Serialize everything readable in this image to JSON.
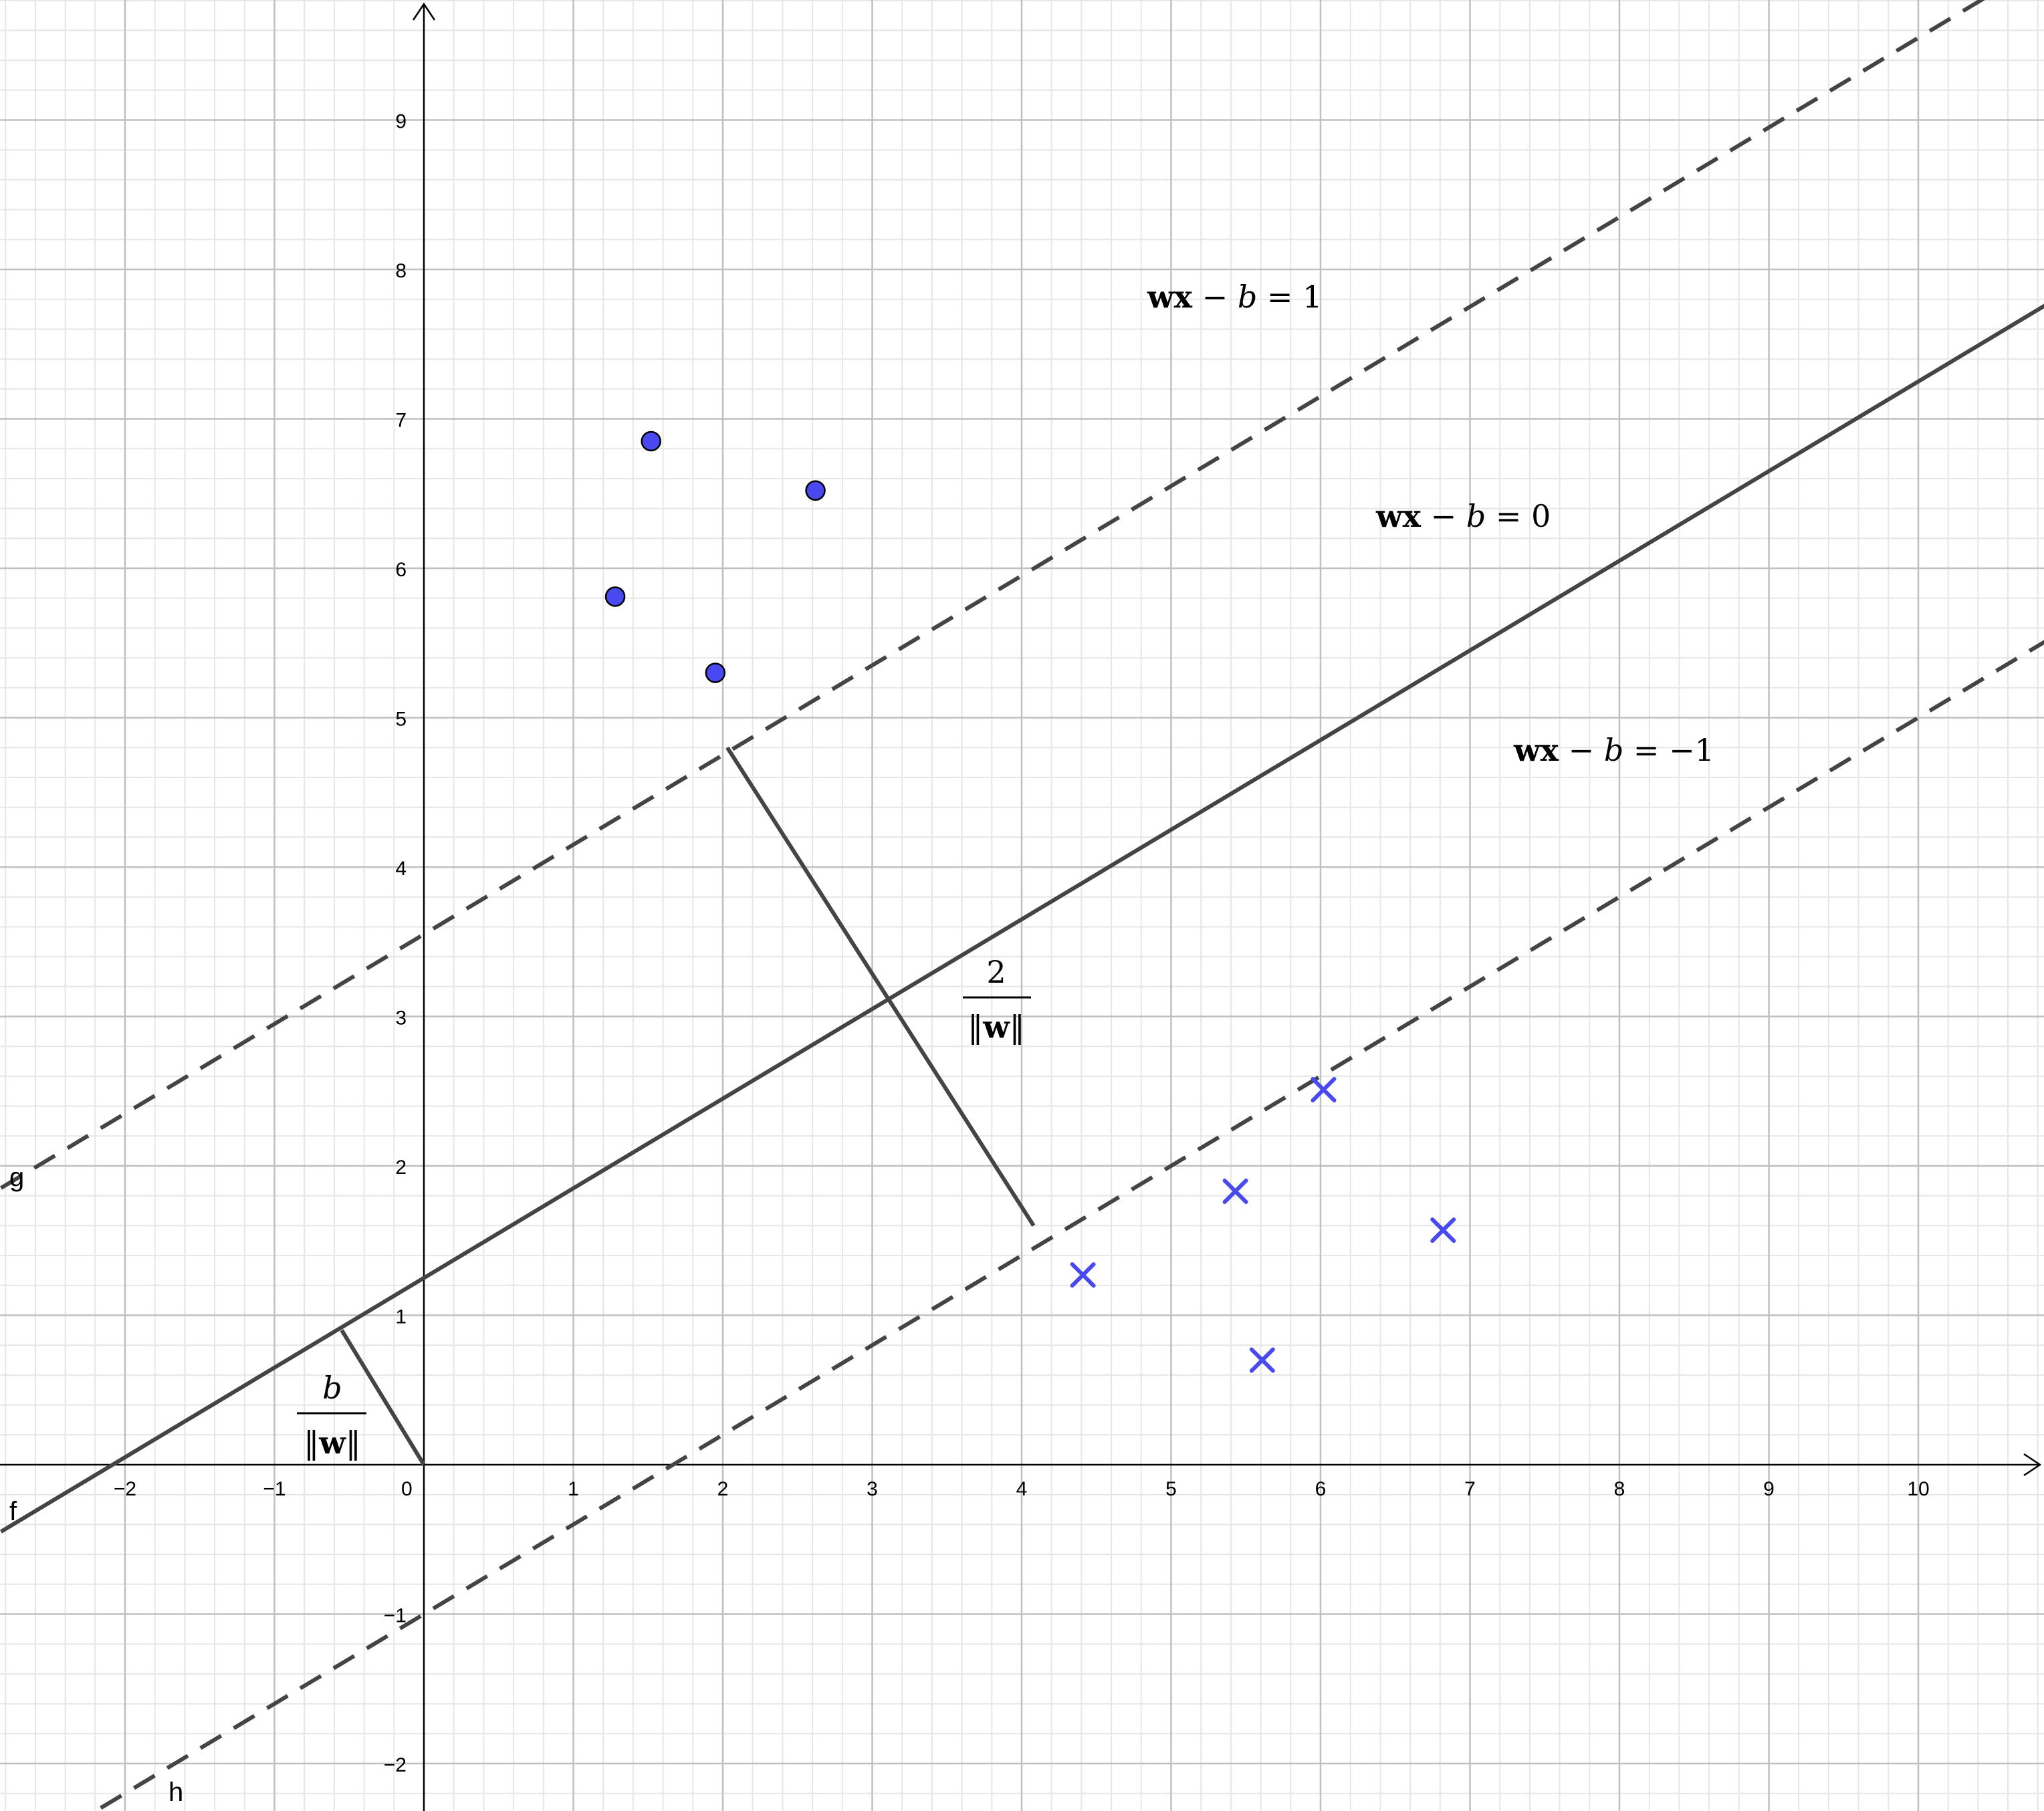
{
  "colors": {
    "background": "#ffffff",
    "grid_major": "#c0c0c0",
    "grid_minor": "#e6e6e6",
    "axis": "#000000",
    "line": "#444444",
    "points": "#4949f0",
    "point_outline": "#000000"
  },
  "axes": {
    "x_ticks": [
      -2,
      -1,
      0,
      1,
      2,
      3,
      4,
      5,
      6,
      7,
      8,
      9,
      10
    ],
    "y_ticks": [
      -2,
      -1,
      1,
      2,
      3,
      4,
      5,
      6,
      7,
      8,
      9
    ],
    "x_tick_labels": [
      "−2",
      "−1",
      "0",
      "1",
      "2",
      "3",
      "4",
      "5",
      "6",
      "7",
      "8",
      "9",
      "10"
    ],
    "y_tick_labels": [
      "−2",
      "−1",
      "1",
      "2",
      "3",
      "4",
      "5",
      "6",
      "7",
      "8",
      "9"
    ],
    "x_range": [
      -2.83,
      10.85
    ],
    "y_range": [
      -2.3,
      9.8
    ],
    "minor_grid_step": 0.2
  },
  "lines": {
    "f": {
      "name": "f",
      "slope": 0.6,
      "intercept": 1.25,
      "style": "solid"
    },
    "g": {
      "name": "g",
      "slope": 0.6,
      "intercept": 3.55,
      "style": "dashed"
    },
    "h": {
      "name": "h",
      "slope": 0.6,
      "intercept": -1.0,
      "style": "dashed"
    }
  },
  "segments": {
    "margin": {
      "from": [
        2.03,
        4.8
      ],
      "to": [
        4.08,
        1.6
      ]
    },
    "offset": {
      "from": [
        -0.55,
        0.9
      ],
      "to": [
        0.0,
        0.0
      ]
    }
  },
  "points": {
    "circles": [
      [
        1.52,
        6.85
      ],
      [
        2.62,
        6.52
      ],
      [
        1.28,
        5.81
      ],
      [
        1.95,
        5.3
      ]
    ],
    "crosses": [
      [
        6.02,
        2.51
      ],
      [
        5.43,
        1.83
      ],
      [
        6.82,
        1.57
      ],
      [
        4.41,
        1.27
      ],
      [
        5.61,
        0.7
      ]
    ]
  },
  "labels": {
    "eq1": {
      "bold": "wx",
      "mid": " − ",
      "ital": "b",
      "rhs": " = 1"
    },
    "eq0": {
      "bold": "wx",
      "mid": " − ",
      "ital": "b",
      "rhs": " = 0"
    },
    "eqm1": {
      "bold": "wx",
      "mid": " − ",
      "ital": "b",
      "rhs": " = −1"
    },
    "frac_margin": {
      "num": "2",
      "den_bar_left": "‖",
      "den_bold": "w",
      "den_bar_right": "‖"
    },
    "frac_offset": {
      "num": "b",
      "den_bar_left": "‖",
      "den_bold": "w",
      "den_bar_right": "‖"
    }
  }
}
